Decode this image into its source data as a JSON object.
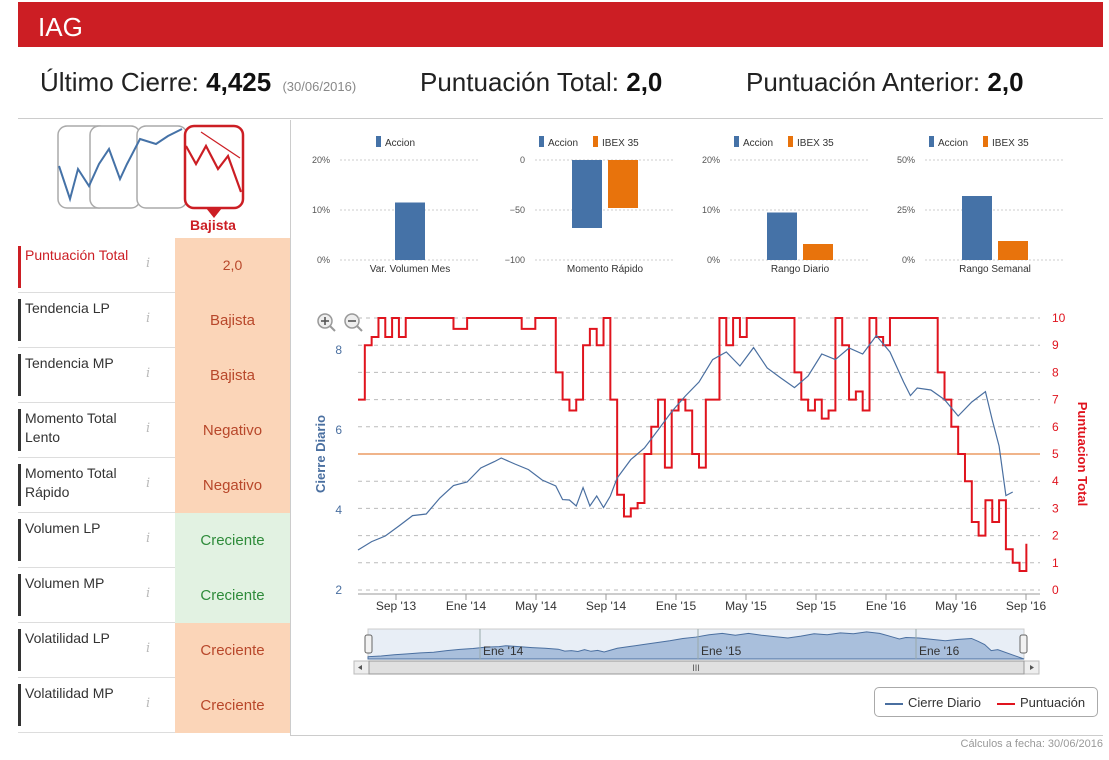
{
  "header": {
    "title": "IAG"
  },
  "summary": {
    "last_close_label": "Último Cierre:",
    "last_close_value": "4,425",
    "last_close_date": "(30/06/2016)",
    "total_score_label": "Puntuación Total:",
    "total_score_value": "2,0",
    "prev_score_label": "Puntuación Anterior:",
    "prev_score_value": "2,0"
  },
  "trend": {
    "label": "Bajista",
    "color": "#cc1e24"
  },
  "rows": [
    {
      "label": "Puntuación Total",
      "value": "2,0",
      "kind": "neutral"
    },
    {
      "label": "Tendencia LP",
      "value": "Bajista",
      "kind": "neg"
    },
    {
      "label": "Tendencia MP",
      "value": "Bajista",
      "kind": "neg"
    },
    {
      "label": "Momento Total Lento",
      "value": "Negativo",
      "kind": "neg"
    },
    {
      "label": "Momento Total Rápido",
      "value": "Negativo",
      "kind": "neg"
    },
    {
      "label": "Volumen LP",
      "value": "Creciente",
      "kind": "pos"
    },
    {
      "label": "Volumen MP",
      "value": "Creciente",
      "kind": "pos"
    },
    {
      "label": "Volatilidad LP",
      "value": "Creciente",
      "kind": "neg"
    },
    {
      "label": "Volatilidad MP",
      "value": "Creciente",
      "kind": "neg"
    }
  ],
  "info_icon": "i",
  "colors": {
    "accion": "#4572a7",
    "ibex": "#e8730c",
    "close": "#4a6fa0",
    "score": "#e0141e",
    "brand": "#cc1e24"
  },
  "chart_data": [
    {
      "type": "bar",
      "title": "Var. Volumen Mes",
      "legend": [
        "Accion"
      ],
      "series": [
        {
          "name": "Accion",
          "values": [
            11.5
          ]
        }
      ],
      "yticks": [
        "20%",
        "10%",
        "0%"
      ],
      "ylim": [
        0,
        20
      ]
    },
    {
      "type": "bar",
      "title": "Momento Rápido",
      "legend": [
        "Accion",
        "IBEX 35"
      ],
      "series": [
        {
          "name": "Accion",
          "values": [
            -68
          ]
        },
        {
          "name": "IBEX 35",
          "values": [
            -48
          ]
        }
      ],
      "yticks": [
        "0",
        "−50",
        "−100"
      ],
      "ylim": [
        -100,
        0
      ]
    },
    {
      "type": "bar",
      "title": "Rango Diario",
      "legend": [
        "Accion",
        "IBEX 35"
      ],
      "series": [
        {
          "name": "Accion",
          "values": [
            9.5
          ]
        },
        {
          "name": "IBEX 35",
          "values": [
            3.2
          ]
        }
      ],
      "yticks": [
        "20%",
        "10%",
        "0%"
      ],
      "ylim": [
        0,
        20
      ]
    },
    {
      "type": "bar",
      "title": "Rango Semanal",
      "legend": [
        "Accion",
        "IBEX 35"
      ],
      "series": [
        {
          "name": "Accion",
          "values": [
            32
          ]
        },
        {
          "name": "IBEX 35",
          "values": [
            9.5
          ]
        }
      ],
      "yticks": [
        "50%",
        "25%",
        "0%"
      ],
      "ylim": [
        0,
        50
      ]
    },
    {
      "type": "line",
      "title": "",
      "xlabel": "",
      "ylabel": "Cierre Diario",
      "y2label": "Puntuacion Total",
      "ylim": [
        2,
        8.8
      ],
      "y2lim": [
        0,
        10
      ],
      "yticks": [
        "8",
        "6",
        "4",
        "2"
      ],
      "y2ticks": [
        "10",
        "9",
        "8",
        "7",
        "6",
        "5",
        "4",
        "3",
        "2",
        "1",
        "0"
      ],
      "xticks": [
        "Sep '13",
        "Ene '14",
        "May '14",
        "Sep '14",
        "Ene '15",
        "May '15",
        "Sep '15",
        "Ene '16",
        "May '16",
        "Sep '16"
      ],
      "threshold": 5,
      "series": [
        {
          "name": "Cierre Diario",
          "points": [
            [
              0,
              3.0
            ],
            [
              2,
              3.15
            ],
            [
              4,
              3.4
            ],
            [
              6,
              3.6
            ],
            [
              8,
              3.8
            ],
            [
              10,
              3.95
            ],
            [
              12,
              4.3
            ],
            [
              14,
              4.55
            ],
            [
              16,
              4.75
            ],
            [
              18,
              5.05
            ],
            [
              20,
              5.15
            ],
            [
              21,
              5.35
            ],
            [
              23,
              5.15
            ],
            [
              25,
              4.95
            ],
            [
              27,
              4.8
            ],
            [
              29,
              4.6
            ],
            [
              30,
              4.2
            ],
            [
              31,
              4.3
            ],
            [
              32,
              4.1
            ],
            [
              33,
              4.5
            ],
            [
              34,
              4.15
            ],
            [
              35,
              4.35
            ],
            [
              36,
              4.0
            ],
            [
              37,
              4.4
            ],
            [
              38,
              4.8
            ],
            [
              40,
              5.2
            ],
            [
              42,
              5.6
            ],
            [
              44,
              6.0
            ],
            [
              46,
              6.4
            ],
            [
              48,
              6.9
            ],
            [
              50,
              7.2
            ],
            [
              52,
              7.7
            ],
            [
              54,
              8.0
            ],
            [
              56,
              7.6
            ],
            [
              58,
              8.0
            ],
            [
              60,
              7.6
            ],
            [
              62,
              7.3
            ],
            [
              64,
              7.0
            ],
            [
              66,
              7.4
            ],
            [
              68,
              7.9
            ],
            [
              70,
              7.7
            ],
            [
              72,
              8.1
            ],
            [
              74,
              7.9
            ],
            [
              76,
              8.3
            ],
            [
              78,
              8.0
            ],
            [
              80,
              7.2
            ],
            [
              81,
              6.8
            ],
            [
              82,
              7.1
            ],
            [
              84,
              7.0
            ],
            [
              86,
              6.7
            ],
            [
              88,
              6.4
            ],
            [
              90,
              6.7
            ],
            [
              92,
              6.9
            ],
            [
              93,
              6.3
            ],
            [
              94,
              5.6
            ],
            [
              95,
              4.3
            ],
            [
              96,
              4.5
            ]
          ]
        },
        {
          "name": "Puntuación",
          "points": [
            [
              0,
              7
            ],
            [
              1,
              9
            ],
            [
              2,
              9.3
            ],
            [
              3,
              10
            ],
            [
              4,
              9.3
            ],
            [
              5,
              10
            ],
            [
              6,
              9.3
            ],
            [
              7,
              10
            ],
            [
              8,
              10
            ],
            [
              10,
              10
            ],
            [
              12,
              10
            ],
            [
              14,
              9.6
            ],
            [
              16,
              10
            ],
            [
              18,
              10
            ],
            [
              20,
              10
            ],
            [
              22,
              10
            ],
            [
              24,
              9.6
            ],
            [
              26,
              10
            ],
            [
              28,
              10
            ],
            [
              29,
              8
            ],
            [
              30,
              7
            ],
            [
              31,
              6.6
            ],
            [
              32,
              7
            ],
            [
              33,
              9
            ],
            [
              34,
              9.6
            ],
            [
              35,
              9
            ],
            [
              36,
              10
            ],
            [
              37,
              7
            ],
            [
              38,
              3.5
            ],
            [
              39,
              2.7
            ],
            [
              40,
              3
            ],
            [
              41,
              3.2
            ],
            [
              42,
              5
            ],
            [
              43,
              6
            ],
            [
              44,
              7
            ],
            [
              45,
              4.5
            ],
            [
              46,
              6.6
            ],
            [
              47,
              7
            ],
            [
              48,
              6.6
            ],
            [
              49,
              5
            ],
            [
              50,
              4.5
            ],
            [
              51,
              7
            ],
            [
              52,
              7
            ],
            [
              53,
              10
            ],
            [
              54,
              9
            ],
            [
              55,
              10
            ],
            [
              56,
              9.3
            ],
            [
              57,
              10
            ],
            [
              58,
              10
            ],
            [
              60,
              10
            ],
            [
              62,
              10
            ],
            [
              64,
              8
            ],
            [
              65,
              7
            ],
            [
              66,
              6.6
            ],
            [
              67,
              7
            ],
            [
              68,
              6.3
            ],
            [
              69,
              6.6
            ],
            [
              70,
              10
            ],
            [
              71,
              9
            ],
            [
              72,
              7
            ],
            [
              73,
              7.3
            ],
            [
              74,
              6.6
            ],
            [
              75,
              10
            ],
            [
              76,
              9.3
            ],
            [
              77,
              9
            ],
            [
              78,
              10
            ],
            [
              80,
              10
            ],
            [
              82,
              10
            ],
            [
              84,
              10
            ],
            [
              85,
              8
            ],
            [
              86,
              7
            ],
            [
              87,
              6
            ],
            [
              88,
              5
            ],
            [
              89,
              4
            ],
            [
              90,
              2.5
            ],
            [
              91,
              2
            ],
            [
              92,
              3.3
            ],
            [
              93,
              2.5
            ],
            [
              94,
              3.3
            ],
            [
              95,
              1.5
            ],
            [
              96,
              1
            ],
            [
              97,
              0.7
            ],
            [
              98,
              1.7
            ]
          ]
        }
      ]
    }
  ],
  "navigator": {
    "labels": [
      "Ene '14",
      "Ene '15",
      "Ene '16"
    ],
    "scroll_grip": "III"
  },
  "legend": {
    "close_label": "Cierre Diario",
    "score_label": "Puntuación"
  },
  "footer": {
    "text": "Cálculos a fecha: 30/06/2016"
  }
}
